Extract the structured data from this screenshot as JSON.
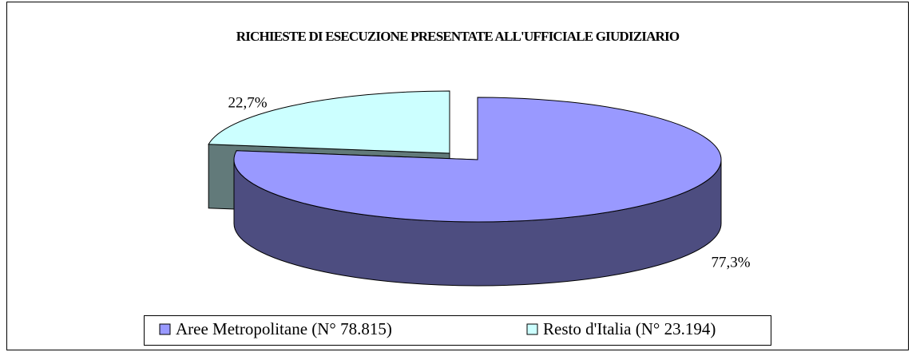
{
  "chart_data": {
    "type": "pie",
    "title": "RICHIESTE DI ESECUZIONE PRESENTATE ALL'UFFICIALE GIUDIZIARIO",
    "categories": [
      "Aree Metropolitane (N° 78.815)",
      "Resto d'Italia (N° 23.194)"
    ],
    "values": [
      77.3,
      22.7
    ],
    "value_labels": [
      "77,3%",
      "22,7%"
    ],
    "colors": [
      "#9999ff",
      "#ccffff"
    ],
    "legend": "bottom"
  }
}
